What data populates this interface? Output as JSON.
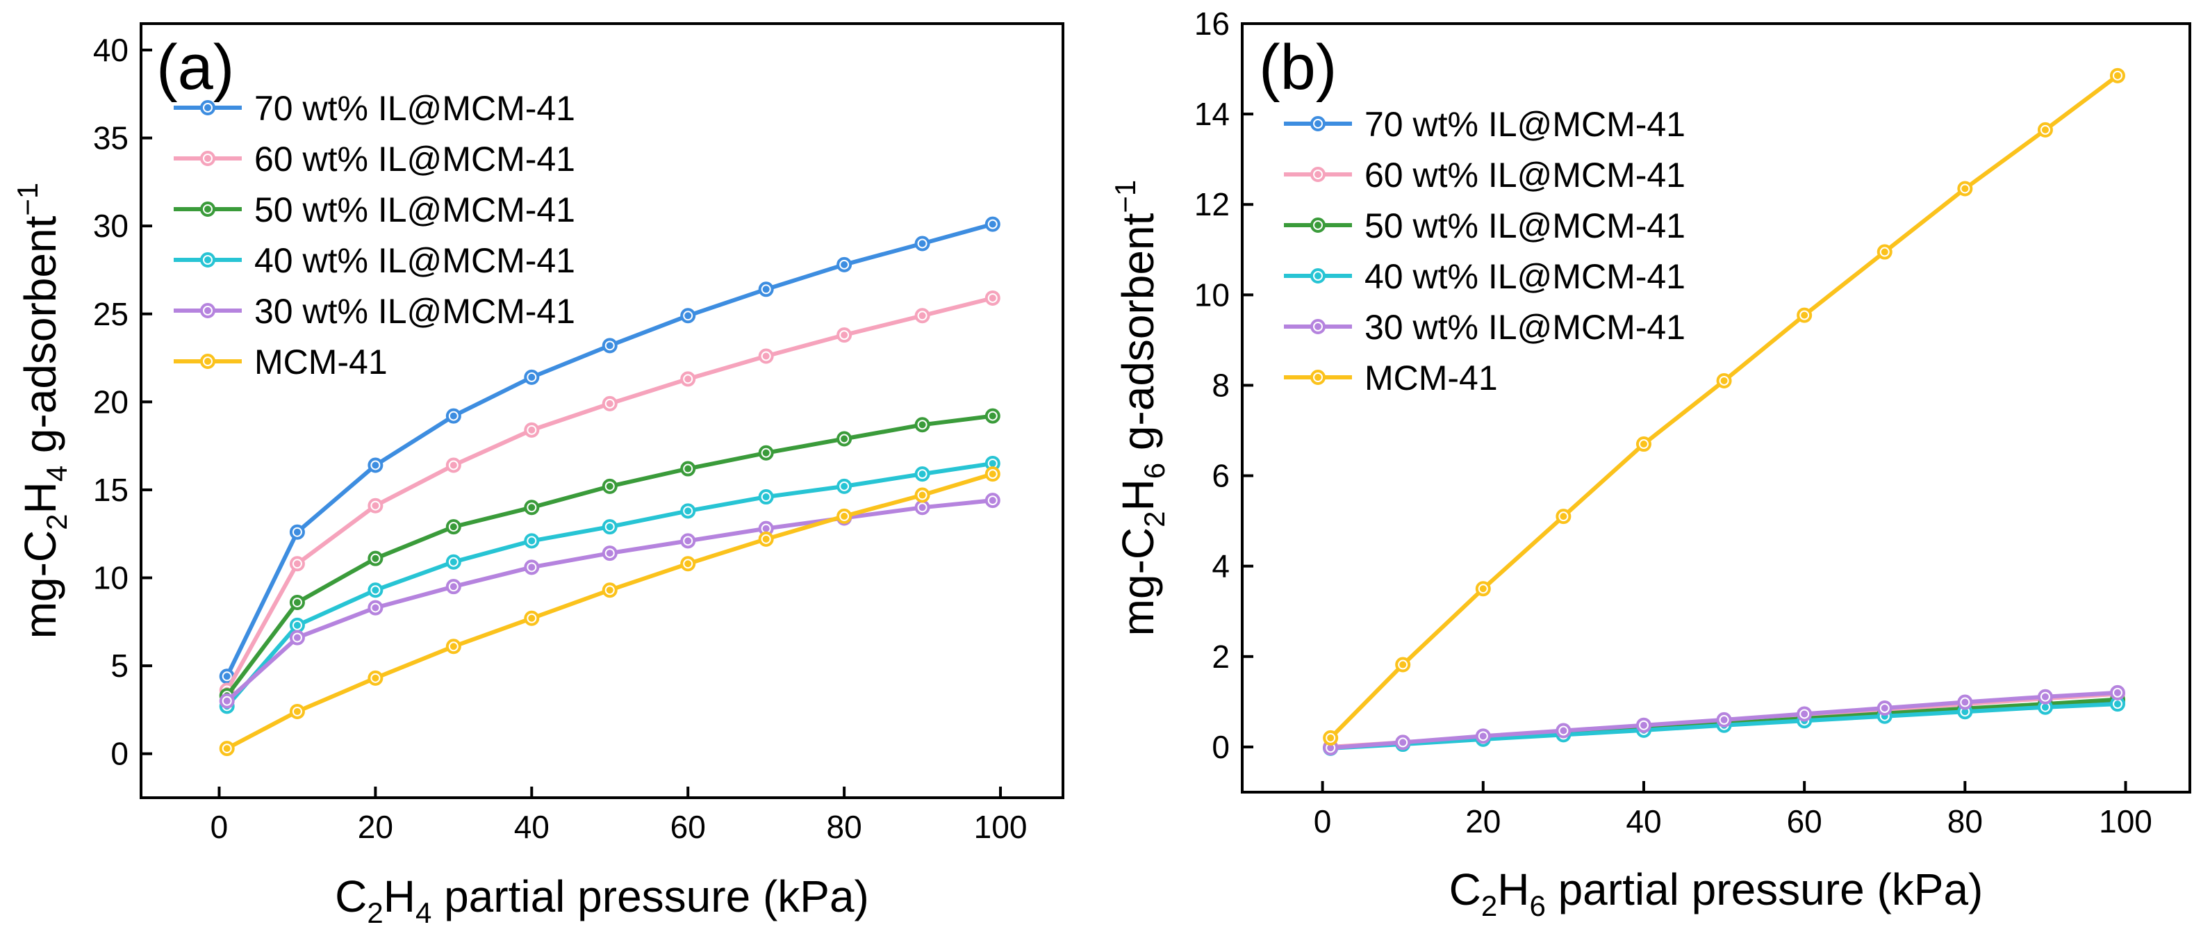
{
  "chart_data": [
    {
      "type": "line",
      "panel_label": "(a)",
      "xlabel": {
        "prefix": "C",
        "sub1": "2",
        "mid": "H",
        "sub2": "4",
        "suffix": " partial pressure (kPa)"
      },
      "ylabel": {
        "prefix": "mg-C",
        "sub1": "2",
        "mid": "H",
        "sub2": "4",
        "suffix": " g-adsorbent",
        "sup": "−1"
      },
      "xlim": [
        -10,
        108
      ],
      "ylim": [
        -2.5,
        41.5
      ],
      "xticks": [
        "0",
        "20",
        "40",
        "60",
        "80",
        "100"
      ],
      "yticks": [
        "0",
        "5",
        "10",
        "15",
        "20",
        "25",
        "30",
        "35",
        "40"
      ],
      "legend_position": "top-left",
      "series": [
        {
          "name": "70 wt% IL@MCM-41",
          "color": "#3d8de0",
          "x": [
            1,
            10,
            20,
            30,
            40,
            50,
            60,
            70,
            80,
            90,
            99
          ],
          "y": [
            4.4,
            12.6,
            16.4,
            19.2,
            21.4,
            23.2,
            24.9,
            26.4,
            27.8,
            29.0,
            30.1
          ]
        },
        {
          "name": "60 wt% IL@MCM-41",
          "color": "#f6a3bc",
          "x": [
            1,
            10,
            20,
            30,
            40,
            50,
            60,
            70,
            80,
            90,
            99
          ],
          "y": [
            3.6,
            10.8,
            14.1,
            16.4,
            18.4,
            19.9,
            21.3,
            22.6,
            23.8,
            24.9,
            25.9
          ]
        },
        {
          "name": "50 wt% IL@MCM-41",
          "color": "#3a9b3a",
          "x": [
            1,
            10,
            20,
            30,
            40,
            50,
            60,
            70,
            80,
            90,
            99
          ],
          "y": [
            3.3,
            8.6,
            11.1,
            12.9,
            14.0,
            15.2,
            16.2,
            17.1,
            17.9,
            18.7,
            19.2
          ]
        },
        {
          "name": "40 wt% IL@MCM-41",
          "color": "#27c4d4",
          "x": [
            1,
            10,
            20,
            30,
            40,
            50,
            60,
            70,
            80,
            90,
            99
          ],
          "y": [
            2.7,
            7.3,
            9.3,
            10.9,
            12.1,
            12.9,
            13.8,
            14.6,
            15.2,
            15.9,
            16.5
          ]
        },
        {
          "name": "30 wt% IL@MCM-41",
          "color": "#b583de",
          "x": [
            1,
            10,
            20,
            30,
            40,
            50,
            60,
            70,
            80,
            90,
            99
          ],
          "y": [
            3.0,
            6.6,
            8.3,
            9.5,
            10.6,
            11.4,
            12.1,
            12.8,
            13.4,
            14.0,
            14.4
          ]
        },
        {
          "name": "MCM-41",
          "color": "#fbc21c",
          "x": [
            1,
            10,
            20,
            30,
            40,
            50,
            60,
            70,
            80,
            90,
            99
          ],
          "y": [
            0.3,
            2.4,
            4.3,
            6.1,
            7.7,
            9.3,
            10.8,
            12.2,
            13.5,
            14.7,
            15.9
          ]
        }
      ]
    },
    {
      "type": "line",
      "panel_label": "(b)",
      "xlabel": {
        "prefix": "C",
        "sub1": "2",
        "mid": "H",
        "sub2": "6",
        "suffix": " partial pressure (kPa)"
      },
      "ylabel": {
        "prefix": "mg-C",
        "sub1": "2",
        "mid": "H",
        "sub2": "6",
        "suffix": " g-adsorbent",
        "sup": "−1"
      },
      "xlim": [
        -10,
        108
      ],
      "ylim": [
        -1.0,
        16.0
      ],
      "xticks": [
        "0",
        "20",
        "40",
        "60",
        "80",
        "100"
      ],
      "yticks": [
        "0",
        "2",
        "4",
        "6",
        "8",
        "10",
        "12",
        "14",
        "16"
      ],
      "legend_position": "top-left",
      "series": [
        {
          "name": "70 wt% IL@MCM-41",
          "color": "#3d8de0",
          "x": [
            1,
            10,
            20,
            30,
            40,
            50,
            60,
            70,
            80,
            90,
            99
          ],
          "y": [
            -0.02,
            0.08,
            0.2,
            0.3,
            0.4,
            0.52,
            0.63,
            0.72,
            0.82,
            0.92,
            1.0
          ]
        },
        {
          "name": "60 wt% IL@MCM-41",
          "color": "#f6a3bc",
          "x": [
            1,
            10,
            20,
            30,
            40,
            50,
            60,
            70,
            80,
            90,
            99
          ],
          "y": [
            0.0,
            0.1,
            0.22,
            0.33,
            0.45,
            0.57,
            0.7,
            0.82,
            0.95,
            1.07,
            1.17
          ]
        },
        {
          "name": "50 wt% IL@MCM-41",
          "color": "#3a9b3a",
          "x": [
            1,
            10,
            20,
            30,
            40,
            50,
            60,
            70,
            80,
            90,
            99
          ],
          "y": [
            -0.02,
            0.08,
            0.19,
            0.3,
            0.41,
            0.52,
            0.63,
            0.74,
            0.85,
            0.95,
            1.05
          ]
        },
        {
          "name": "40 wt% IL@MCM-41",
          "color": "#27c4d4",
          "x": [
            1,
            10,
            20,
            30,
            40,
            50,
            60,
            70,
            80,
            90,
            99
          ],
          "y": [
            -0.03,
            0.06,
            0.17,
            0.27,
            0.37,
            0.48,
            0.58,
            0.68,
            0.78,
            0.88,
            0.95
          ]
        },
        {
          "name": "30 wt% IL@MCM-41",
          "color": "#b583de",
          "x": [
            1,
            10,
            20,
            30,
            40,
            50,
            60,
            70,
            80,
            90,
            99
          ],
          "y": [
            -0.02,
            0.1,
            0.24,
            0.36,
            0.48,
            0.6,
            0.73,
            0.86,
            0.99,
            1.11,
            1.2
          ]
        },
        {
          "name": "MCM-41",
          "color": "#fbc21c",
          "x": [
            1,
            10,
            20,
            30,
            40,
            50,
            60,
            70,
            80,
            90,
            99
          ],
          "y": [
            0.2,
            1.82,
            3.5,
            5.1,
            6.7,
            8.1,
            9.55,
            10.95,
            12.35,
            13.65,
            14.85
          ]
        }
      ]
    }
  ]
}
